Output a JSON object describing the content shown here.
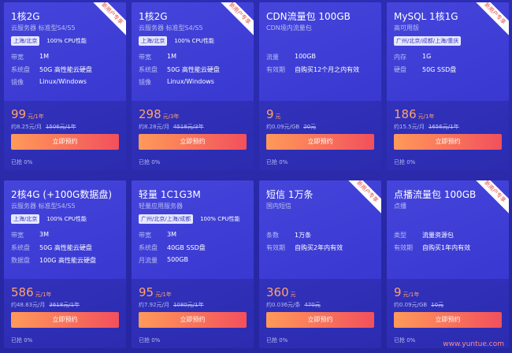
{
  "cards": [
    {
      "title": "1核2G",
      "ribbon": "新用户专享",
      "subtitle": "云服务器 标准型S4/S5",
      "tags": [
        "上海/北京",
        "100% CPU性能"
      ],
      "specs": [
        {
          "label": "带宽",
          "value": "1M"
        },
        {
          "label": "系统盘",
          "value": "50G 高性能云硬盘"
        },
        {
          "label": "镜像",
          "value": "Linux/Windows"
        }
      ],
      "price": "99",
      "unit": "元/1年",
      "per": "约8.25元/月",
      "original": "1506元/1年",
      "button": "立即预约",
      "sold": "已抢 0%"
    },
    {
      "title": "1核2G",
      "ribbon": "新用户专享",
      "subtitle": "云服务器 标准型S4/S5",
      "tags": [
        "上海/北京",
        "100% CPU性能"
      ],
      "specs": [
        {
          "label": "带宽",
          "value": "1M"
        },
        {
          "label": "系统盘",
          "value": "50G 高性能云硬盘"
        },
        {
          "label": "镜像",
          "value": "Linux/Windows"
        }
      ],
      "price": "298",
      "unit": "元/3年",
      "per": "约8.28元/月",
      "original": "4518元/3年",
      "button": "立即预约",
      "sold": "已抢 0%"
    },
    {
      "title": "CDN流量包 100GB",
      "subtitle": "CDN境内流量包",
      "specs": [
        {
          "label": "流量",
          "value": "100GB"
        },
        {
          "label": "有效期",
          "value": "自购买12个月之内有效"
        }
      ],
      "price": "9",
      "unit": "元",
      "per": "约0.09元/GB",
      "original": "20元",
      "button": "立即预约",
      "sold": "已抢 0%"
    },
    {
      "title": "MySQL 1核1G",
      "ribbon": "新用户专享",
      "subtitle": "高可用版",
      "tags": [
        "广州/北京/成都/上海/重庆"
      ],
      "specs": [
        {
          "label": "内存",
          "value": "1G"
        },
        {
          "label": "硬盘",
          "value": "50G SSD盘"
        }
      ],
      "price": "186",
      "unit": "元/1年",
      "per": "约15.5元/月",
      "original": "1656元/1年",
      "button": "立即预约",
      "sold": "已抢 0%"
    },
    {
      "title": "2核4G (+100G数据盘)",
      "subtitle": "云服务器 标准型S4/S5",
      "tags": [
        "上海/北京",
        "100% CPU性能"
      ],
      "specs": [
        {
          "label": "带宽",
          "value": "3M"
        },
        {
          "label": "系统盘",
          "value": "50G 高性能云硬盘"
        },
        {
          "label": "数据盘",
          "value": "100G 高性能云硬盘"
        }
      ],
      "price": "586",
      "unit": "元/1年",
      "per": "约48.83元/月",
      "original": "3618元/1年",
      "button": "立即预约",
      "sold": "已抢 0%"
    },
    {
      "title": "轻量 1C1G3M",
      "subtitle": "轻量应用服务器",
      "tags": [
        "广州/北京/上海/成都",
        "100% CPU性能"
      ],
      "specs": [
        {
          "label": "带宽",
          "value": "3M"
        },
        {
          "label": "系统盘",
          "value": "40GB SSD盘"
        },
        {
          "label": "月流量",
          "value": "500GB"
        }
      ],
      "price": "95",
      "unit": "元/1年",
      "per": "约7.92元/月",
      "original": "1080元/1年",
      "button": "立即预约",
      "sold": "已抢 0%"
    },
    {
      "title": "短信 1万条",
      "ribbon": "新用户专享",
      "subtitle": "国内短信",
      "specs": [
        {
          "label": "条数",
          "value": "1万条"
        },
        {
          "label": "有效期",
          "value": "自购买2年内有效"
        }
      ],
      "price": "360",
      "unit": "元",
      "per": "约0.036元/条",
      "original": "470元",
      "button": "立即预约",
      "sold": "已抢 0%"
    },
    {
      "title": "点播流量包 100GB",
      "ribbon": "新用户专享",
      "subtitle": "点播",
      "specs": [
        {
          "label": "类型",
          "value": "流量资源包"
        },
        {
          "label": "有效期",
          "value": "自购买1年内有效"
        }
      ],
      "price": "9",
      "unit": "元/1年",
      "per": "约0.09元/GB",
      "original": "10元",
      "button": "立即预约",
      "sold": "已抢 0%"
    }
  ],
  "watermark": "www.yuntue.com"
}
